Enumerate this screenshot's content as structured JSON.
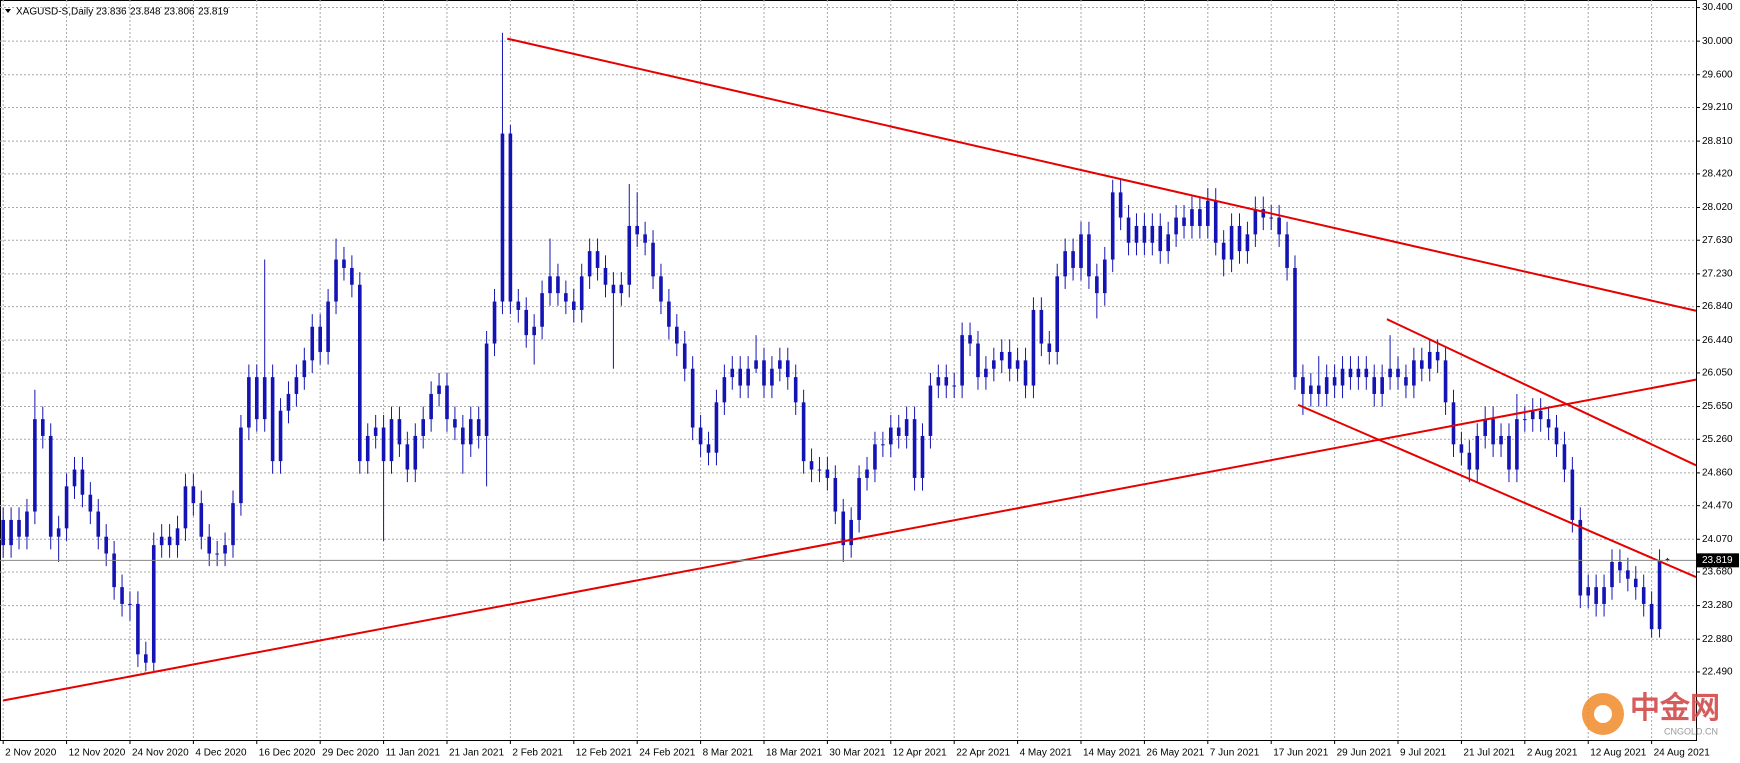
{
  "chart_data": {
    "type": "candlestick",
    "title": "XAGUSD-S,Daily",
    "color": "#1414b4",
    "grid": true,
    "ylim": [
      21.68,
      30.49
    ],
    "xlim": [
      -0.4,
      213.6
    ],
    "yticks": [
      {
        "value": 30.4,
        "label": "30.400"
      },
      {
        "value": 30.0,
        "label": "30.000"
      },
      {
        "value": 29.6,
        "label": "29.600"
      },
      {
        "value": 29.21,
        "label": "29.210"
      },
      {
        "value": 28.81,
        "label": "28.810"
      },
      {
        "value": 28.42,
        "label": "28.420"
      },
      {
        "value": 28.02,
        "label": "28.020"
      },
      {
        "value": 27.63,
        "label": "27.630"
      },
      {
        "value": 27.23,
        "label": "27.230"
      },
      {
        "value": 26.84,
        "label": "26.840"
      },
      {
        "value": 26.44,
        "label": "26.440"
      },
      {
        "value": 26.05,
        "label": "26.050"
      },
      {
        "value": 25.65,
        "label": "25.650"
      },
      {
        "value": 25.26,
        "label": "25.260"
      },
      {
        "value": 24.86,
        "label": "24.860"
      },
      {
        "value": 24.47,
        "label": "24.470"
      },
      {
        "value": 24.07,
        "label": "24.070"
      },
      {
        "value": 23.68,
        "label": "23.680"
      },
      {
        "value": 23.28,
        "label": "23.280"
      },
      {
        "value": 22.88,
        "label": "22.880"
      },
      {
        "value": 22.49,
        "label": "22.490"
      }
    ],
    "xticks": [
      {
        "value": 0,
        "label": "2 Nov 2020"
      },
      {
        "value": 8,
        "label": "12 Nov 2020"
      },
      {
        "value": 16,
        "label": "24 Nov 2020"
      },
      {
        "value": 24,
        "label": "4 Dec 2020"
      },
      {
        "value": 32,
        "label": "16 Dec 2020"
      },
      {
        "value": 40,
        "label": "29 Dec 2020"
      },
      {
        "value": 48,
        "label": "11 Jan 2021"
      },
      {
        "value": 56,
        "label": "21 Jan 2021"
      },
      {
        "value": 64,
        "label": "2 Feb 2021"
      },
      {
        "value": 72,
        "label": "12 Feb 2021"
      },
      {
        "value": 80,
        "label": "24 Feb 2021"
      },
      {
        "value": 88,
        "label": "8 Mar 2021"
      },
      {
        "value": 96,
        "label": "18 Mar 2021"
      },
      {
        "value": 104,
        "label": "30 Mar 2021"
      },
      {
        "value": 112,
        "label": "12 Apr 2021"
      },
      {
        "value": 120,
        "label": "22 Apr 2021"
      },
      {
        "value": 128,
        "label": "4 May 2021"
      },
      {
        "value": 136,
        "label": "14 May 2021"
      },
      {
        "value": 144,
        "label": "26 May 2021"
      },
      {
        "value": 152,
        "label": "7 Jun 2021"
      },
      {
        "value": 160,
        "label": "17 Jun 2021"
      },
      {
        "value": 168,
        "label": "29 Jun 2021"
      },
      {
        "value": 176,
        "label": "9 Jul 2021"
      },
      {
        "value": 184,
        "label": "21 Jul 2021"
      },
      {
        "value": 192,
        "label": "2 Aug 2021"
      },
      {
        "value": 200,
        "label": "12 Aug 2021"
      },
      {
        "value": 208,
        "label": "24 Aug 2021"
      }
    ],
    "open": [
      24.3,
      24.0,
      24.3,
      24.1,
      24.4,
      25.5,
      25.3,
      24.1,
      24.2,
      24.7,
      24.9,
      24.6,
      24.4,
      24.1,
      23.9,
      23.5,
      23.3,
      23.3,
      22.7,
      22.6,
      24.0,
      24.1,
      24.0,
      24.2,
      24.7,
      24.5,
      24.1,
      23.9,
      23.9,
      24.0,
      24.5,
      25.4,
      26.0,
      25.5,
      26.0,
      25.0,
      25.6,
      25.8,
      26.0,
      26.2,
      26.6,
      26.3,
      26.9,
      27.4,
      27.3,
      27.1,
      25.0,
      25.3,
      25.4,
      25.0,
      25.5,
      25.2,
      24.9,
      25.3,
      25.5,
      25.8,
      25.9,
      25.5,
      25.4,
      25.2,
      25.5,
      25.3,
      26.4,
      26.9,
      28.9,
      26.9,
      26.8,
      26.5,
      26.6,
      27.0,
      27.2,
      27.0,
      26.9,
      26.8,
      27.2,
      27.5,
      27.3,
      27.1,
      27.0,
      27.1,
      27.8,
      27.7,
      27.6,
      27.2,
      26.9,
      26.6,
      26.4,
      26.1,
      25.4,
      25.2,
      25.1,
      25.7,
      26.0,
      26.1,
      25.9,
      26.1,
      26.2,
      25.9,
      26.1,
      26.2,
      26.0,
      25.7,
      25.0,
      24.9,
      24.9,
      24.8,
      24.4,
      24.0,
      24.3,
      24.8,
      24.9,
      25.2,
      25.2,
      25.4,
      25.3,
      25.5,
      24.8,
      25.3,
      25.9,
      26.0,
      25.9,
      25.9,
      26.5,
      26.4,
      26.0,
      26.1,
      26.2,
      26.3,
      26.1,
      26.2,
      25.9,
      26.8,
      26.4,
      26.3,
      27.2,
      27.5,
      27.3,
      27.7,
      27.2,
      27.0,
      27.4,
      28.2,
      27.9,
      27.6,
      27.8,
      27.6,
      27.8,
      27.5,
      27.7,
      27.9,
      27.8,
      28.0,
      27.8,
      28.1,
      27.6,
      27.4,
      27.8,
      27.5,
      27.7,
      28.0,
      27.9,
      27.9,
      27.7,
      27.3,
      26.0,
      25.8,
      25.9,
      25.8,
      26.0,
      25.9,
      26.1,
      26.0,
      26.1,
      26.0,
      25.8,
      26.0,
      26.1,
      26.0,
      25.9,
      26.2,
      26.1,
      26.3,
      26.2,
      25.7,
      25.2,
      25.1,
      24.9,
      25.3,
      25.5,
      25.2,
      25.3,
      24.9,
      25.5,
      25.5,
      25.6,
      25.5,
      25.4,
      25.2,
      24.9,
      24.3,
      23.4,
      23.5,
      23.3,
      23.5,
      23.8,
      23.7,
      23.6,
      23.5,
      23.3,
      23.0,
      23.836
    ],
    "high": [
      24.45,
      24.45,
      24.45,
      24.55,
      25.85,
      25.65,
      25.45,
      24.35,
      24.85,
      25.05,
      25.05,
      24.75,
      24.55,
      24.25,
      24.05,
      23.65,
      23.45,
      23.45,
      22.85,
      24.15,
      24.25,
      24.25,
      24.35,
      24.85,
      24.85,
      24.65,
      24.25,
      24.05,
      24.15,
      24.65,
      25.55,
      26.15,
      26.15,
      27.4,
      26.15,
      25.75,
      25.95,
      26.15,
      26.35,
      26.75,
      26.75,
      27.05,
      27.65,
      27.55,
      27.45,
      27.25,
      25.45,
      25.55,
      25.55,
      25.65,
      25.65,
      25.35,
      25.45,
      25.65,
      25.95,
      26.05,
      26.05,
      25.65,
      25.55,
      25.65,
      25.65,
      26.55,
      27.05,
      30.1,
      29.0,
      27.05,
      26.95,
      26.75,
      27.15,
      27.65,
      27.35,
      27.15,
      27.05,
      27.35,
      27.65,
      27.65,
      27.45,
      27.25,
      27.25,
      28.3,
      28.2,
      27.85,
      27.75,
      27.35,
      27.05,
      26.75,
      26.55,
      26.25,
      25.55,
      25.35,
      25.85,
      26.15,
      26.25,
      26.25,
      26.25,
      26.5,
      26.35,
      26.25,
      26.35,
      26.35,
      26.15,
      25.85,
      25.15,
      25.05,
      25.05,
      24.95,
      24.55,
      24.45,
      24.95,
      25.05,
      25.35,
      25.35,
      25.55,
      25.55,
      25.65,
      25.65,
      25.45,
      26.05,
      26.15,
      26.15,
      26.05,
      26.65,
      26.65,
      26.55,
      26.25,
      26.35,
      26.45,
      26.45,
      26.35,
      26.35,
      26.95,
      26.95,
      26.55,
      27.35,
      27.65,
      27.65,
      27.85,
      27.85,
      27.35,
      27.55,
      28.35,
      28.35,
      28.05,
      27.95,
      27.95,
      27.95,
      27.95,
      27.85,
      28.05,
      28.05,
      28.15,
      28.15,
      28.25,
      28.25,
      27.75,
      27.95,
      27.95,
      27.85,
      28.15,
      28.15,
      28.05,
      28.05,
      27.85,
      27.45,
      26.15,
      26.05,
      26.25,
      26.15,
      26.15,
      26.25,
      26.25,
      26.25,
      26.25,
      26.15,
      26.15,
      26.5,
      26.25,
      26.15,
      26.35,
      26.35,
      26.45,
      26.45,
      26.35,
      25.85,
      25.35,
      25.25,
      25.45,
      25.65,
      25.65,
      25.45,
      25.45,
      25.8,
      25.65,
      25.75,
      25.75,
      25.65,
      25.55,
      25.35,
      25.05,
      24.45,
      23.65,
      23.65,
      23.65,
      23.95,
      23.95,
      23.85,
      23.75,
      23.65,
      23.45,
      23.95,
      23.848
    ],
    "low": [
      23.85,
      23.85,
      23.95,
      23.95,
      24.25,
      25.15,
      23.95,
      23.8,
      24.05,
      24.55,
      24.45,
      24.25,
      23.95,
      23.75,
      23.35,
      23.15,
      23.1,
      22.55,
      22.5,
      22.5,
      23.85,
      23.85,
      23.85,
      24.05,
      24.35,
      23.95,
      23.75,
      23.75,
      23.75,
      23.85,
      24.35,
      25.25,
      25.35,
      25.35,
      24.85,
      24.85,
      25.45,
      25.65,
      25.85,
      26.05,
      26.15,
      26.15,
      26.75,
      27.15,
      26.95,
      24.85,
      24.85,
      25.15,
      24.05,
      24.85,
      25.05,
      24.75,
      24.75,
      25.15,
      25.35,
      25.65,
      25.35,
      25.25,
      24.85,
      25.05,
      25.15,
      24.7,
      26.25,
      26.75,
      26.75,
      26.65,
      26.35,
      26.15,
      26.45,
      26.85,
      26.85,
      26.75,
      26.65,
      26.65,
      27.05,
      27.15,
      26.95,
      26.1,
      26.85,
      26.95,
      27.55,
      27.45,
      27.05,
      26.75,
      26.45,
      26.25,
      25.95,
      25.25,
      25.05,
      24.95,
      24.95,
      25.55,
      25.85,
      25.75,
      25.75,
      26.05,
      25.75,
      25.75,
      25.95,
      25.85,
      25.55,
      24.85,
      24.75,
      24.75,
      24.65,
      24.25,
      23.8,
      23.85,
      24.15,
      24.65,
      24.75,
      25.05,
      25.05,
      25.15,
      25.15,
      24.65,
      24.65,
      25.15,
      25.75,
      25.75,
      25.75,
      25.75,
      26.25,
      25.85,
      25.85,
      25.95,
      26.05,
      25.95,
      25.95,
      25.75,
      25.75,
      26.25,
      26.15,
      26.15,
      27.05,
      27.15,
      27.15,
      27.05,
      26.7,
      26.85,
      27.25,
      27.75,
      27.45,
      27.45,
      27.45,
      27.45,
      27.35,
      27.35,
      27.55,
      27.65,
      27.65,
      27.65,
      27.65,
      27.45,
      27.2,
      27.25,
      27.35,
      27.35,
      27.55,
      27.75,
      27.75,
      27.55,
      27.15,
      25.85,
      25.55,
      25.65,
      25.65,
      25.65,
      25.75,
      25.75,
      25.85,
      25.85,
      25.85,
      25.65,
      25.65,
      25.85,
      25.85,
      25.75,
      25.75,
      25.95,
      25.95,
      26.05,
      25.55,
      25.05,
      24.95,
      24.75,
      24.75,
      25.15,
      25.05,
      25.05,
      24.75,
      24.75,
      25.35,
      25.35,
      25.35,
      25.25,
      25.05,
      24.75,
      24.15,
      23.25,
      23.25,
      23.15,
      23.15,
      23.35,
      23.55,
      23.45,
      23.35,
      23.15,
      22.9,
      22.9,
      23.806
    ],
    "close": [
      24.0,
      24.3,
      24.1,
      24.4,
      25.5,
      25.3,
      24.1,
      24.2,
      24.7,
      24.9,
      24.6,
      24.4,
      24.1,
      23.9,
      23.5,
      23.3,
      23.3,
      22.7,
      22.6,
      24.0,
      24.1,
      24.0,
      24.2,
      24.7,
      24.5,
      24.1,
      23.9,
      23.9,
      24.0,
      24.5,
      25.4,
      26.0,
      25.5,
      26.0,
      25.0,
      25.6,
      25.8,
      26.0,
      26.2,
      26.6,
      26.3,
      26.9,
      27.4,
      27.3,
      27.1,
      25.0,
      25.3,
      25.4,
      25.0,
      25.5,
      25.2,
      24.9,
      25.3,
      25.5,
      25.8,
      25.9,
      25.5,
      25.4,
      25.2,
      25.5,
      25.3,
      26.4,
      26.9,
      28.9,
      26.9,
      26.8,
      26.5,
      26.6,
      27.0,
      27.2,
      27.0,
      26.9,
      26.8,
      27.2,
      27.5,
      27.3,
      27.1,
      27.0,
      27.1,
      27.8,
      27.7,
      27.6,
      27.2,
      26.9,
      26.6,
      26.4,
      26.1,
      25.4,
      25.2,
      25.1,
      25.7,
      26.0,
      26.1,
      25.9,
      26.1,
      26.2,
      25.9,
      26.1,
      26.2,
      26.0,
      25.7,
      25.0,
      24.9,
      24.9,
      24.8,
      24.4,
      24.0,
      24.3,
      24.8,
      24.9,
      25.2,
      25.2,
      25.4,
      25.3,
      25.5,
      24.8,
      25.3,
      25.9,
      26.0,
      25.9,
      25.9,
      26.5,
      26.4,
      26.0,
      26.1,
      26.2,
      26.3,
      26.1,
      26.2,
      25.9,
      26.8,
      26.4,
      26.3,
      27.2,
      27.5,
      27.3,
      27.7,
      27.2,
      27.0,
      27.4,
      28.2,
      27.9,
      27.6,
      27.8,
      27.6,
      27.8,
      27.5,
      27.7,
      27.9,
      27.8,
      28.0,
      27.8,
      28.1,
      27.6,
      27.4,
      27.8,
      27.5,
      27.7,
      28.0,
      27.9,
      27.9,
      27.7,
      27.3,
      26.0,
      25.8,
      25.9,
      25.8,
      26.0,
      25.9,
      26.1,
      26.0,
      26.1,
      26.0,
      25.8,
      26.0,
      26.1,
      26.0,
      25.9,
      26.2,
      26.1,
      26.3,
      26.2,
      25.7,
      25.2,
      25.1,
      24.9,
      25.3,
      25.5,
      25.2,
      25.3,
      24.9,
      25.5,
      25.5,
      25.6,
      25.5,
      25.4,
      25.2,
      24.9,
      24.3,
      23.4,
      23.5,
      23.3,
      23.5,
      23.8,
      23.7,
      23.6,
      23.5,
      23.3,
      23.0,
      23.8,
      23.819
    ],
    "trendline_color": "#e60000",
    "trendlines": [
      {
        "x": [
          63.6,
          213.6
        ],
        "y": [
          30.03,
          26.79
        ]
      },
      {
        "x": [
          0,
          213.6
        ],
        "y": [
          22.15,
          25.97
        ]
      },
      {
        "x": [
          174.6,
          213.6
        ],
        "y": [
          26.69,
          24.95
        ]
      },
      {
        "x": [
          163.4,
          213.6
        ],
        "y": [
          25.67,
          23.62
        ]
      }
    ]
  },
  "watermark": {
    "title": "中金网",
    "subtitle": "CNGOLD.CN"
  }
}
